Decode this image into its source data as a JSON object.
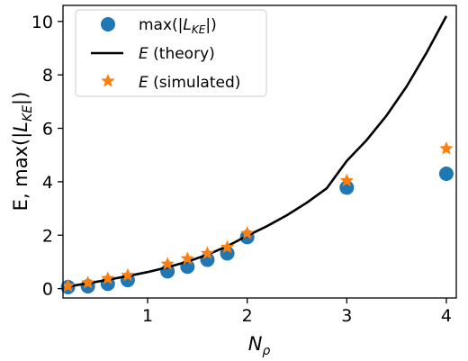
{
  "chart_data": {
    "type": "scatter",
    "title": "",
    "xlabel": "N_ρ",
    "ylabel": "E, max(|L_KE|)",
    "xlim": [
      0.15,
      4.1
    ],
    "ylim": [
      -0.35,
      10.6
    ],
    "xticks": [
      1,
      2,
      3,
      4
    ],
    "yticks": [
      0,
      2,
      4,
      6,
      8,
      10
    ],
    "grid": false,
    "legend_position": "upper-left",
    "series": [
      {
        "name": "max(|L_KE|)",
        "kind": "scatter",
        "marker": "circle",
        "color": "#1f77b4",
        "x": [
          0.2,
          0.4,
          0.6,
          0.8,
          1.2,
          1.4,
          1.6,
          1.8,
          2.0,
          3.0,
          4.0
        ],
        "y": [
          0.06,
          0.09,
          0.18,
          0.32,
          0.65,
          0.82,
          1.08,
          1.32,
          1.93,
          3.78,
          4.3
        ]
      },
      {
        "name": "E (theory)",
        "kind": "line",
        "color": "#000000",
        "x": [
          0.2,
          0.4,
          0.6,
          0.8,
          1.0,
          1.2,
          1.4,
          1.6,
          1.8,
          2.0,
          2.2,
          2.4,
          2.6,
          2.8,
          3.0,
          3.2,
          3.4,
          3.6,
          3.8,
          4.0
        ],
        "y": [
          0.08,
          0.2,
          0.33,
          0.47,
          0.62,
          0.8,
          1.01,
          1.27,
          1.59,
          1.98,
          2.34,
          2.75,
          3.22,
          3.76,
          4.78,
          5.56,
          6.48,
          7.56,
          8.82,
          10.2
        ]
      },
      {
        "name": "E (simulated)",
        "kind": "scatter",
        "marker": "star",
        "color": "#ff7f0e",
        "x": [
          0.2,
          0.4,
          0.6,
          0.8,
          1.2,
          1.4,
          1.6,
          1.8,
          2.0,
          3.0,
          4.0
        ],
        "y": [
          0.1,
          0.22,
          0.38,
          0.5,
          0.92,
          1.12,
          1.32,
          1.55,
          2.07,
          4.04,
          5.24
        ]
      }
    ]
  }
}
